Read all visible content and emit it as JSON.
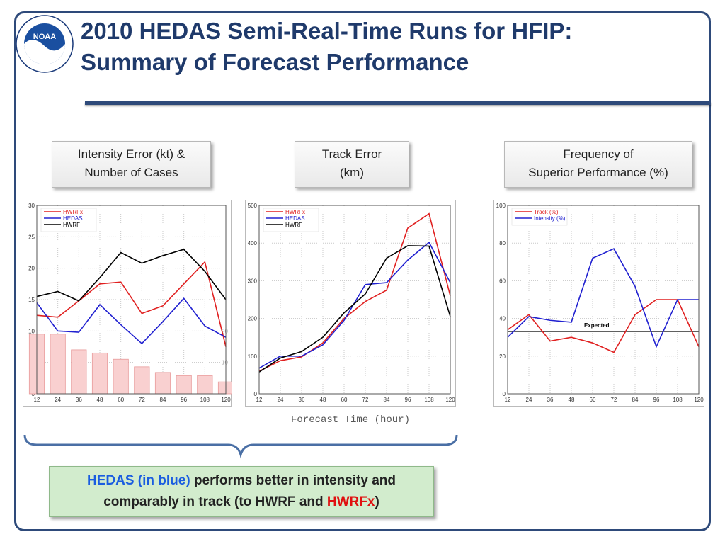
{
  "slide": {
    "title_line1": "2010 HEDAS Semi-Real-Time Runs for HFIP:",
    "title_line2": "Summary of Forecast Performance",
    "logo_text": "NOAA",
    "x_axis_label": "Forecast Time (hour)",
    "summary": {
      "part1": "HEDAS (in blue)",
      "part2": " performs better in intensity and comparably in track (to HWRF and ",
      "part3": "HWRFx",
      "part4": ")"
    }
  },
  "labels": {
    "intensity_line1": "Intensity Error (kt) &",
    "intensity_line2": "Number of Cases",
    "track_line1": "Track Error",
    "track_line2": "(km)",
    "freq_line1": "Frequency of",
    "freq_line2": "Superior Performance (%)"
  },
  "colors": {
    "HWRFx": "#e02020",
    "HEDAS": "#2020d0",
    "HWRF": "#000000",
    "Track": "#e02020",
    "Intensity": "#2020d0",
    "bars_fill": "#f9d0d0",
    "bars_stroke": "#e89a9a",
    "accent": "#1f3a6b"
  },
  "chart_data": [
    {
      "id": "intensity",
      "type": "line",
      "title": "",
      "x": [
        12,
        24,
        36,
        48,
        60,
        72,
        84,
        96,
        108,
        120
      ],
      "xticks": [
        "12",
        "24",
        "36",
        "48",
        "60",
        "72",
        "84",
        "96",
        "108",
        "120"
      ],
      "ylim": [
        0,
        30
      ],
      "yticks": [
        "0",
        "5",
        "10",
        "15",
        "20",
        "25",
        "30"
      ],
      "y2_ticks": [
        {
          "label": "10",
          "value": 5
        },
        {
          "label": "20",
          "value": 10
        }
      ],
      "legend": "top-left",
      "series": [
        {
          "name": "HWRFx",
          "values": [
            12.5,
            12.2,
            14.8,
            17.5,
            17.8,
            12.8,
            14.0,
            17.5,
            21.0,
            7.5
          ]
        },
        {
          "name": "HEDAS",
          "values": [
            14.5,
            10.0,
            9.8,
            14.2,
            11.0,
            8.0,
            11.5,
            15.2,
            10.8,
            9.0
          ]
        },
        {
          "name": "HWRF",
          "values": [
            15.5,
            16.3,
            14.8,
            18.5,
            22.5,
            20.8,
            22.0,
            23.0,
            19.5,
            15.0
          ]
        }
      ],
      "bars": {
        "name": "Number of Cases",
        "values": [
          9.5,
          9.5,
          7.0,
          6.5,
          5.5,
          4.3,
          3.4,
          2.9,
          2.9,
          1.9
        ]
      }
    },
    {
      "id": "track",
      "type": "line",
      "title": "",
      "x": [
        12,
        24,
        36,
        48,
        60,
        72,
        84,
        96,
        108,
        120
      ],
      "xticks": [
        "12",
        "24",
        "36",
        "48",
        "60",
        "72",
        "84",
        "96",
        "108",
        "120"
      ],
      "ylim": [
        0,
        500
      ],
      "yticks": [
        "0",
        "100",
        "200",
        "300",
        "400",
        "500"
      ],
      "legend": "top-left",
      "series": [
        {
          "name": "HWRFx",
          "values": [
            60,
            88,
            98,
            135,
            200,
            245,
            275,
            440,
            478,
            260
          ]
        },
        {
          "name": "HEDAS",
          "values": [
            68,
            100,
            100,
            130,
            195,
            290,
            295,
            355,
            402,
            295
          ]
        },
        {
          "name": "HWRF",
          "values": [
            58,
            95,
            112,
            150,
            215,
            265,
            360,
            393,
            392,
            205
          ]
        }
      ]
    },
    {
      "id": "frequency",
      "type": "line",
      "title": "",
      "x": [
        12,
        24,
        36,
        48,
        60,
        72,
        84,
        96,
        108,
        120
      ],
      "xticks": [
        "12",
        "24",
        "36",
        "48",
        "60",
        "72",
        "84",
        "96",
        "108",
        "120"
      ],
      "ylim": [
        0,
        100
      ],
      "yticks": [
        "0",
        "20",
        "40",
        "60",
        "80",
        "100"
      ],
      "legend": "top-left",
      "series": [
        {
          "name": "Track (%)",
          "values": [
            34,
            42,
            28,
            30,
            27,
            22,
            42,
            50,
            50,
            25
          ]
        },
        {
          "name": "Intensity (%)",
          "values": [
            30,
            41,
            39,
            38,
            72,
            77,
            57,
            25,
            50,
            50
          ]
        }
      ],
      "reference": {
        "label": "Expected",
        "value": 33
      }
    }
  ]
}
